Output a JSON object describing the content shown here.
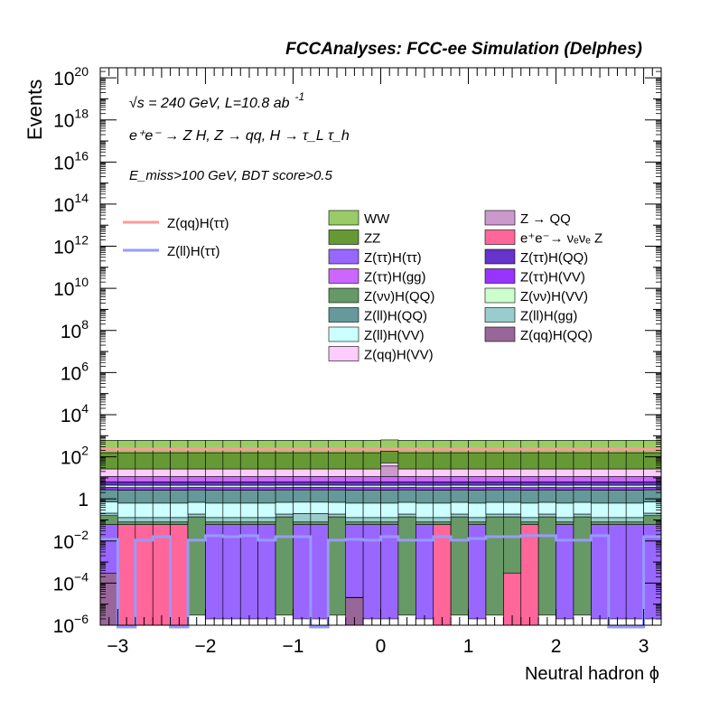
{
  "chart_data": {
    "type": "bar",
    "title": "FCCAnalyses: FCC-ee Simulation (Delphes)",
    "xlabel": "Neutral hadron ϕ",
    "ylabel": "Events",
    "xlim": [
      -3.2,
      3.2
    ],
    "ylim": [
      1e-06,
      3e+20
    ],
    "yscale": "log",
    "bins": 32,
    "x_ticks": [
      "−3",
      "−2",
      "−1",
      "0",
      "1",
      "2",
      "3"
    ],
    "x_tick_values": [
      -3,
      -2,
      -1,
      0,
      1,
      2,
      3
    ],
    "y_ticks": [
      {
        "base": "10",
        "exp": "−6",
        "value": 1e-06
      },
      {
        "base": "10",
        "exp": "−4",
        "value": 0.0001
      },
      {
        "base": "10",
        "exp": "−2",
        "value": 0.01
      },
      {
        "base": "1",
        "exp": "",
        "value": 1
      },
      {
        "base": "10",
        "exp": "2",
        "value": 100
      },
      {
        "base": "10",
        "exp": "4",
        "value": 10000
      },
      {
        "base": "10",
        "exp": "6",
        "value": 1000000
      },
      {
        "base": "10",
        "exp": "8",
        "value": 100000000
      },
      {
        "base": "10",
        "exp": "10",
        "value": 10000000000
      },
      {
        "base": "10",
        "exp": "12",
        "value": 1000000000000
      },
      {
        "base": "10",
        "exp": "14",
        "value": 100000000000000
      },
      {
        "base": "10",
        "exp": "16",
        "value": 1e+16
      },
      {
        "base": "10",
        "exp": "18",
        "value": 1e+18
      },
      {
        "base": "10",
        "exp": "20",
        "value": 1e+20
      }
    ],
    "annotations": {
      "energy": "√s = 240 GeV, L=10.8 ab",
      "energy_sup": "-1",
      "process": "e⁺e⁻ → Z H, Z → qq, H → τ_L τ_h",
      "cut": "E_miss>100 GeV, BDT score>0.5"
    },
    "legend_lines": [
      {
        "name": "Z(qq)H(ττ)",
        "color": "#ff9999"
      },
      {
        "name": "Z(ll)H(ττ)",
        "color": "#9999ff"
      }
    ],
    "legend_fills": [
      {
        "name": "WW",
        "color": "#99cc66"
      },
      {
        "name": "Z → QQ",
        "color": "#cc99cc"
      },
      {
        "name": "ZZ",
        "color": "#669933"
      },
      {
        "name": "e⁺e⁻→ νₑνₑ Z",
        "color": "#ff6699"
      },
      {
        "name": "Z(ττ)H(ττ)",
        "color": "#9966ff"
      },
      {
        "name": "Z(ττ)H(QQ)",
        "color": "#6633cc"
      },
      {
        "name": "Z(ττ)H(gg)",
        "color": "#cc66ff"
      },
      {
        "name": "Z(ττ)H(VV)",
        "color": "#9933ff"
      },
      {
        "name": "Z(νν)H(QQ)",
        "color": "#669966"
      },
      {
        "name": "Z(νν)H(VV)",
        "color": "#ccffcc"
      },
      {
        "name": "Z(ll)H(QQ)",
        "color": "#669999"
      },
      {
        "name": "Z(ll)H(gg)",
        "color": "#99cccc"
      },
      {
        "name": "Z(ll)H(VV)",
        "color": "#ccffff"
      },
      {
        "name": "Z(qq)H(QQ)",
        "color": "#996699"
      },
      {
        "name": "Z(qq)H(VV)",
        "color": "#ffccff"
      }
    ],
    "stack": [
      {
        "name": "Z(qq)H(QQ)",
        "color": "#996699",
        "values": [
          0.0003,
          1e-06,
          1e-06,
          1e-06,
          1e-06,
          1e-06,
          1e-06,
          1e-06,
          1e-06,
          1e-06,
          1e-06,
          1e-06,
          1e-06,
          1e-06,
          2e-05,
          1e-06,
          1e-06,
          1e-06,
          1e-06,
          1e-06,
          1e-06,
          1e-06,
          1e-06,
          1e-06,
          1e-06,
          1e-06,
          1e-06,
          1e-06,
          1e-06,
          1e-06,
          1e-06,
          1e-06
        ]
      },
      {
        "name": "e⁺e⁻→ νₑνₑ Z",
        "color": "#ff6699",
        "values": [
          1e-06,
          0.06,
          0.06,
          0.06,
          0.06,
          1e-06,
          1e-06,
          1e-06,
          1e-06,
          1e-06,
          1e-06,
          1e-06,
          1e-06,
          1e-06,
          1e-06,
          1e-06,
          1e-06,
          1e-06,
          1e-06,
          0.06,
          1e-06,
          1e-06,
          1e-06,
          0.0003,
          0.06,
          1e-06,
          1e-06,
          1e-06,
          1e-06,
          1e-06,
          1e-06,
          1e-06
        ]
      },
      {
        "name": "Z(ττ)H(ττ)",
        "color": "#9966ff",
        "values": [
          0.06,
          1e-06,
          1e-06,
          1e-06,
          1e-06,
          1e-06,
          0.06,
          0.06,
          0.06,
          0.06,
          1e-06,
          0.06,
          0.06,
          1e-06,
          0.06,
          0.06,
          0.06,
          1e-06,
          0.06,
          1e-06,
          1e-06,
          0.06,
          1e-06,
          1e-06,
          1e-06,
          1e-06,
          0.06,
          1e-06,
          0.06,
          0.06,
          0.06,
          0.06
        ]
      },
      {
        "name": "Z(νν)H(QQ)",
        "color": "#669966",
        "values": [
          0.1,
          0.02,
          0.02,
          0.02,
          0.02,
          0.14,
          0.02,
          0.02,
          0.02,
          0.02,
          0.14,
          0.02,
          0.02,
          0.14,
          0.02,
          0.02,
          0.02,
          0.14,
          0.02,
          0.02,
          0.14,
          0.02,
          0.14,
          0.14,
          0.02,
          0.14,
          0.02,
          0.14,
          0.02,
          0.02,
          0.02,
          0.1
        ]
      },
      {
        "name": "Z(ll)H(gg)",
        "color": "#99cccc",
        "values": [
          0.05,
          0.05,
          0.05,
          0.05,
          0.05,
          0.05,
          0.05,
          0.05,
          0.05,
          0.05,
          0.05,
          0.12,
          0.12,
          0.05,
          0.05,
          0.05,
          0.05,
          0.05,
          0.05,
          0.05,
          0.05,
          0.05,
          0.05,
          0.05,
          0.05,
          0.05,
          0.05,
          0.05,
          0.05,
          0.05,
          0.05,
          0.05
        ]
      },
      {
        "name": "Z(ll)H(VV)",
        "color": "#ccffff",
        "values": [
          0.5,
          0.5,
          0.5,
          0.5,
          0.5,
          0.5,
          0.5,
          0.5,
          0.5,
          0.5,
          0.5,
          0.5,
          0.5,
          0.5,
          0.5,
          0.5,
          0.5,
          0.5,
          0.5,
          0.5,
          0.5,
          0.5,
          0.5,
          0.5,
          0.5,
          0.5,
          0.5,
          0.5,
          0.5,
          0.5,
          0.5,
          0.5
        ]
      },
      {
        "name": "Z(ll)H(QQ)",
        "color": "#669999",
        "values": [
          2,
          2,
          2,
          2,
          2,
          2,
          2,
          2,
          2,
          2,
          2,
          2,
          2,
          2,
          2,
          2,
          2,
          2,
          2,
          2,
          2,
          2,
          2,
          2,
          2,
          2,
          2,
          2,
          2,
          2,
          2,
          2
        ]
      },
      {
        "name": "Z(ττ)H(VV)",
        "color": "#9933ff",
        "values": [
          0.8,
          0.8,
          0.8,
          0.8,
          0.8,
          0.8,
          0.8,
          0.8,
          0.8,
          0.8,
          0.8,
          0.8,
          0.8,
          0.8,
          0.8,
          0.8,
          0.8,
          0.8,
          0.8,
          0.8,
          0.8,
          0.8,
          0.8,
          0.8,
          0.8,
          0.8,
          0.8,
          0.8,
          0.8,
          0.8,
          0.8,
          0.8
        ]
      },
      {
        "name": "Z(νν)H(VV)",
        "color": "#ccffcc",
        "values": [
          1,
          1,
          1,
          1,
          1,
          1,
          1,
          1,
          1,
          1,
          1,
          1,
          1,
          1,
          1,
          1,
          1,
          1,
          1,
          1,
          1,
          1,
          1,
          1,
          1,
          1,
          1,
          1,
          1,
          1,
          1,
          1
        ]
      },
      {
        "name": "Z(ττ)H(QQ)",
        "color": "#6633cc",
        "values": [
          2,
          2,
          2,
          2,
          2,
          2,
          2,
          2,
          2,
          2,
          2,
          2,
          2,
          2,
          2,
          2,
          2,
          2,
          2,
          2,
          2,
          2,
          2,
          2,
          2,
          2,
          2,
          2,
          2,
          2,
          2,
          2
        ]
      },
      {
        "name": "Z(ττ)H(gg)",
        "color": "#cc66ff",
        "values": [
          5,
          5,
          5,
          5,
          5,
          5,
          5,
          5,
          5,
          5,
          5,
          5,
          5,
          5,
          5,
          5,
          5,
          5,
          5,
          5,
          5,
          5,
          5,
          5,
          5,
          5,
          5,
          5,
          5,
          5,
          5,
          5
        ]
      },
      {
        "name": "Z → QQ",
        "color": "#cc99cc",
        "values": [
          1e-06,
          1e-06,
          1e-06,
          1e-06,
          1e-06,
          1e-06,
          1e-06,
          1e-06,
          1e-06,
          1e-06,
          1e-06,
          1e-06,
          1e-06,
          1e-06,
          1e-06,
          1e-06,
          25,
          1e-06,
          1e-06,
          1e-06,
          1e-06,
          1e-06,
          1e-06,
          1e-06,
          1e-06,
          1e-06,
          1e-06,
          1e-06,
          1e-06,
          1e-06,
          1e-06,
          1e-06
        ]
      },
      {
        "name": "Z(qq)H(VV)",
        "color": "#ffccff",
        "values": [
          15,
          15,
          15,
          15,
          15,
          15,
          15,
          15,
          15,
          15,
          15,
          15,
          15,
          15,
          15,
          15,
          15,
          15,
          15,
          15,
          15,
          15,
          15,
          15,
          15,
          15,
          15,
          15,
          15,
          15,
          15,
          15
        ]
      },
      {
        "name": "ZZ",
        "color": "#669933",
        "values": [
          130,
          130,
          130,
          130,
          130,
          130,
          130,
          130,
          130,
          130,
          130,
          130,
          130,
          130,
          130,
          130,
          130,
          130,
          130,
          130,
          130,
          130,
          130,
          130,
          130,
          130,
          130,
          130,
          130,
          130,
          130,
          130
        ]
      },
      {
        "name": "WW",
        "color": "#99cc66",
        "values": [
          450,
          450,
          450,
          450,
          450,
          450,
          450,
          450,
          450,
          450,
          450,
          450,
          450,
          450,
          450,
          450,
          450,
          450,
          450,
          450,
          450,
          450,
          450,
          450,
          450,
          450,
          450,
          450,
          450,
          450,
          450,
          450
        ]
      }
    ],
    "lines": [
      {
        "name": "Z(qq)H(ττ)",
        "color": "#ff9999",
        "values": [
          230,
          230,
          230,
          230,
          230,
          230,
          230,
          230,
          230,
          230,
          230,
          230,
          230,
          230,
          230,
          230,
          230,
          230,
          230,
          230,
          230,
          230,
          230,
          230,
          230,
          230,
          230,
          230,
          230,
          230,
          230,
          230
        ]
      },
      {
        "name": "Z(ll)H(ττ)",
        "color": "#9999ff",
        "values": [
          0.012,
          8e-07,
          0.011,
          0.016,
          8e-07,
          0.011,
          0.018,
          0.016,
          0.018,
          0.011,
          0.016,
          0.016,
          8e-07,
          0.011,
          0.012,
          0.011,
          0.016,
          0.011,
          0.011,
          0.016,
          0.011,
          0.013,
          0.016,
          0.016,
          0.018,
          0.018,
          0.011,
          0.011,
          0.018,
          8e-07,
          8e-07,
          0.016
        ]
      }
    ]
  }
}
